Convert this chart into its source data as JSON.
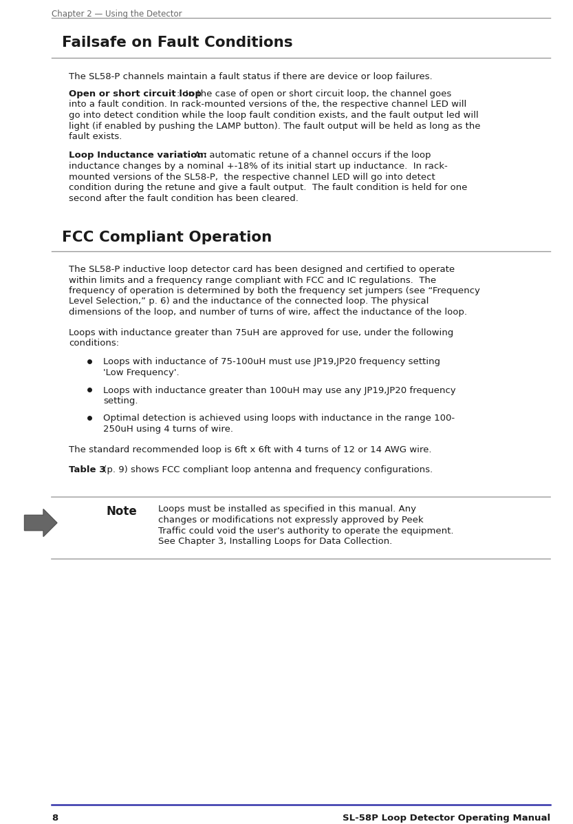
{
  "header_text": "Chapter 2 — Using the Detector",
  "page_number": "8",
  "footer_right": "SL-58P Loop Detector Operating Manual",
  "section1_title": "Failsafe on Fault Conditions",
  "section1_intro": "The SL58-P channels maintain a fault status if there are device or loop failures.",
  "para1_bold": "Open or short circuit loop",
  "para1_rest": ":  In the case of open or short circuit loop, the channel goes",
  "para1_lines": [
    "into a fault condition. In rack-mounted versions of the, the respective channel LED will",
    "go into detect condition while the loop fault condition exists, and the fault output led will",
    "light (if enabled by pushing the LAMP button). The fault output will be held as long as the",
    "fault exists."
  ],
  "para2_bold": "Loop Inductance variation:",
  "para2_rest": "  An automatic retune of a channel occurs if the loop",
  "para2_lines": [
    "inductance changes by a nominal +-18% of its initial start up inductance.  In rack-",
    "mounted versions of the SL58-P,  the respective channel LED will go into detect",
    "condition during the retune and give a fault output.  The fault condition is held for one",
    "second after the fault condition has been cleared."
  ],
  "section2_title": "FCC Compliant Operation",
  "fcc1_lines": [
    "The SL58-P inductive loop detector card has been designed and certified to operate",
    "within limits and a frequency range compliant with FCC and IC regulations.  The",
    "frequency of operation is determined by both the frequency set jumpers (see “Frequency",
    "Level Selection,” p. 6) and the inductance of the connected loop. The physical",
    "dimensions of the loop, and number of turns of wire, affect the inductance of the loop."
  ],
  "fcc2_line1": "Loops with inductance greater than 75uH are approved for use, under the following",
  "fcc2_line2": "conditions:",
  "bullet1_lines": [
    "Loops with inductance of 75-100uH must use JP19,JP20 frequency setting",
    "'Low Frequency'."
  ],
  "bullet2_lines": [
    "Loops with inductance greater than 100uH may use any JP19,JP20 frequency",
    "setting."
  ],
  "bullet3_lines": [
    "Optimal detection is achieved using loops with inductance in the range 100-",
    "250uH using 4 turns of wire."
  ],
  "fcc_para3": "The standard recommended loop is 6ft x 6ft with 4 turns of 12 or 14 AWG wire.",
  "table3_bold": "Table 3",
  "table3_rest": " (p. 9) shows FCC compliant loop antenna and frequency configurations.",
  "note_bold": "Note",
  "note_lines": [
    "Loops must be installed as specified in this manual. Any",
    "changes or modifications not expressly approved by Peek",
    "Traffic could void the user's authority to operate the equipment.",
    "See Chapter 3, Installing Loops for Data Collection."
  ],
  "bg_color": "#ffffff",
  "text_color": "#1a1a1a",
  "header_color": "#666666",
  "line_color": "#999999",
  "footer_line_color": "#3333aa"
}
